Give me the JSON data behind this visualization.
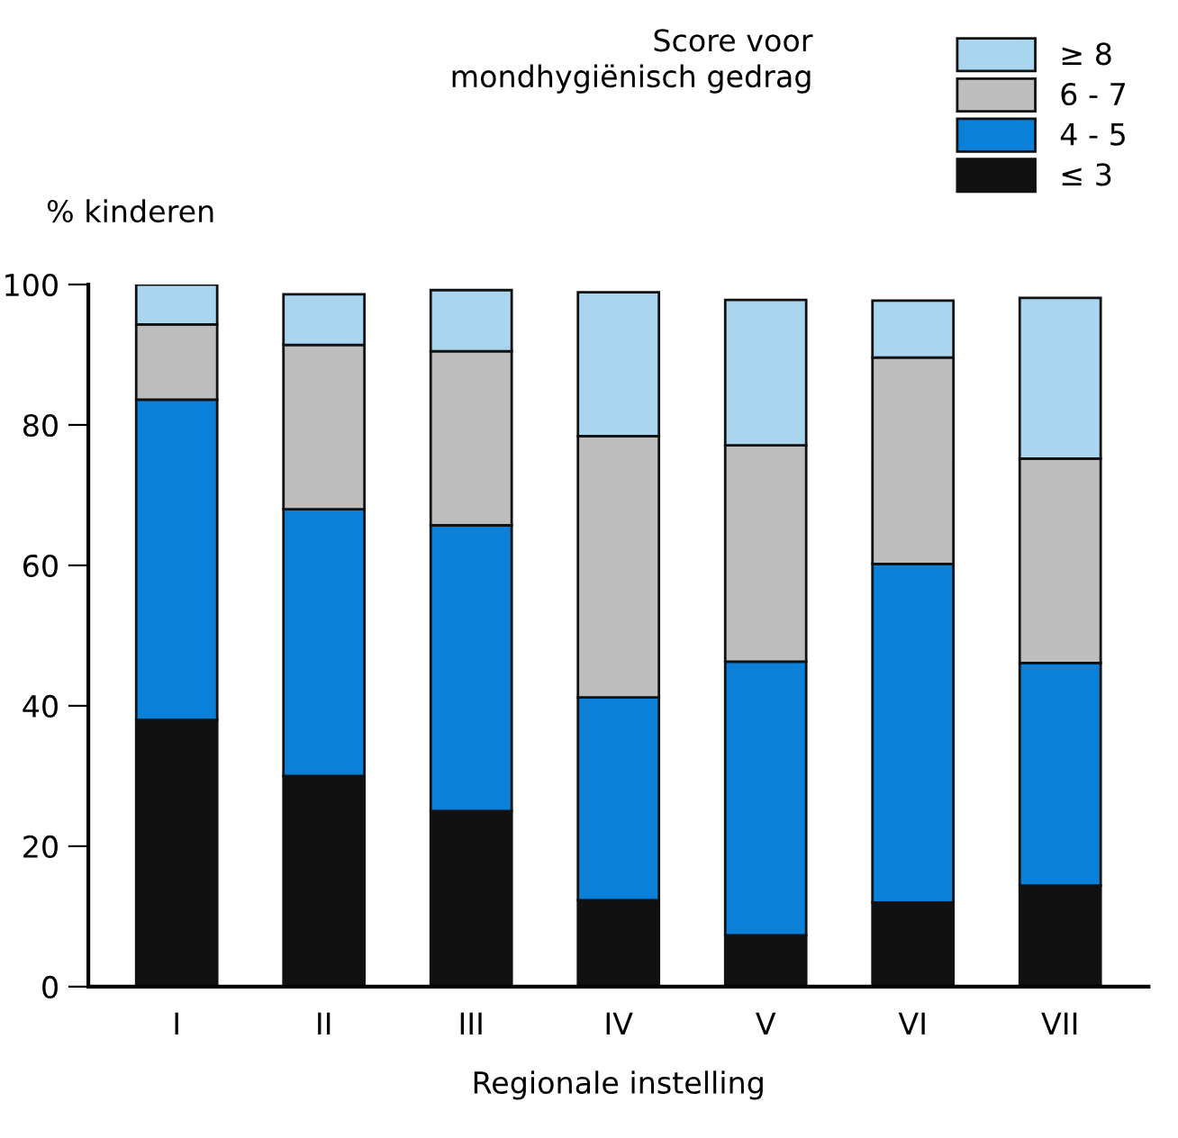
{
  "chart_data": {
    "type": "bar",
    "stacked": true,
    "xlabel": "Regionale instelling",
    "ylabel": "% kinderen",
    "legend_title": "Score voor\nmondhygiënisch gedrag",
    "legend": "top right",
    "grid": false,
    "categories": [
      "I",
      "II",
      "III",
      "IV",
      "V",
      "VI",
      "VII"
    ],
    "ylim": [
      0,
      100
    ],
    "yticks": [
      0,
      20,
      40,
      60,
      80,
      100
    ],
    "series": [
      {
        "name": "≤ 3",
        "color": "#111111",
        "values": [
          38,
          30,
          25,
          12.3,
          7.3,
          12,
          14.4
        ]
      },
      {
        "name": "4 - 5",
        "color": "#0a80d8",
        "values": [
          45.6,
          38,
          40.7,
          28.9,
          39,
          48.2,
          31.7
        ]
      },
      {
        "name": "6 - 7",
        "color": "#bdbdbd",
        "values": [
          10.7,
          23.4,
          24.8,
          37.2,
          30.8,
          29.4,
          29.1
        ]
      },
      {
        "name": "≥ 8",
        "color": "#a9d5ee",
        "values": [
          5.7,
          7.2,
          8.7,
          20.5,
          20.7,
          8.1,
          22.9
        ]
      }
    ]
  }
}
